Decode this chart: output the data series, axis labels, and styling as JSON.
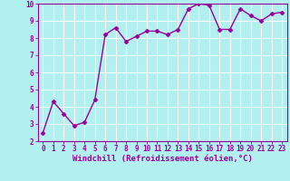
{
  "x": [
    0,
    1,
    2,
    3,
    4,
    5,
    6,
    7,
    8,
    9,
    10,
    11,
    12,
    13,
    14,
    15,
    16,
    17,
    18,
    19,
    20,
    21,
    22,
    23
  ],
  "y": [
    2.5,
    4.3,
    3.6,
    2.9,
    3.1,
    4.4,
    8.2,
    8.6,
    7.8,
    8.1,
    8.4,
    8.4,
    8.2,
    8.5,
    9.7,
    10.0,
    9.9,
    8.5,
    8.5,
    9.7,
    9.3,
    9.0,
    9.4,
    9.5
  ],
  "line_color": "#990099",
  "marker": "D",
  "marker_size": 2.5,
  "linewidth": 1.0,
  "background_color": "#b2efef",
  "grid_color": "#ffffff",
  "xlabel": "Windchill (Refroidissement éolien,°C)",
  "xlabel_fontsize": 6.5,
  "xlabel_color": "#990099",
  "ylim": [
    2,
    10
  ],
  "xlim": [
    -0.5,
    23.5
  ],
  "yticks": [
    2,
    3,
    4,
    5,
    6,
    7,
    8,
    9,
    10
  ],
  "xticks": [
    0,
    1,
    2,
    3,
    4,
    5,
    6,
    7,
    8,
    9,
    10,
    11,
    12,
    13,
    14,
    15,
    16,
    17,
    18,
    19,
    20,
    21,
    22,
    23
  ],
  "tick_fontsize": 5.5,
  "tick_color": "#990099",
  "spine_color": "#990099"
}
